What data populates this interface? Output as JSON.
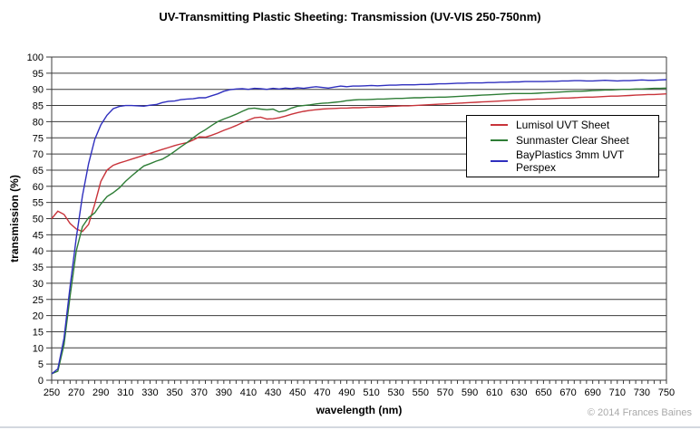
{
  "header": {
    "title": "UV-Transmitting Plastic Sheeting: Transmission (UV-VIS 250-750nm)"
  },
  "footer": {
    "copyright": "© 2014 Frances Baines"
  },
  "chart_data": {
    "type": "line",
    "title": "UV-Transmitting Plastic Sheeting: Transmission (UV-VIS 250-750nm)",
    "xlabel": "wavelength (nm)",
    "ylabel": "transmission (%)",
    "xlim": [
      250,
      750
    ],
    "ylim": [
      0,
      100
    ],
    "x_tick_step": 20,
    "x_minor_tick_step": 5,
    "y_tick_step": 5,
    "grid": "horizontal",
    "legend_position": "inside-upper-right",
    "grid_color": "#3c3c3c",
    "wavelengths_nm": [
      250,
      255,
      260,
      265,
      270,
      275,
      280,
      285,
      290,
      295,
      300,
      305,
      310,
      315,
      320,
      325,
      330,
      335,
      340,
      345,
      350,
      355,
      360,
      365,
      370,
      375,
      380,
      385,
      390,
      395,
      400,
      405,
      410,
      415,
      420,
      425,
      430,
      435,
      440,
      445,
      450,
      455,
      460,
      465,
      470,
      475,
      480,
      485,
      490,
      495,
      500,
      505,
      510,
      515,
      520,
      525,
      530,
      535,
      540,
      545,
      550,
      555,
      560,
      565,
      570,
      575,
      580,
      585,
      590,
      595,
      600,
      605,
      610,
      615,
      620,
      625,
      630,
      635,
      640,
      645,
      650,
      655,
      660,
      665,
      670,
      675,
      680,
      685,
      690,
      695,
      700,
      705,
      710,
      715,
      720,
      725,
      730,
      735,
      740,
      745,
      750
    ],
    "series": [
      {
        "name": "Lumisol UVT Sheet",
        "color": "#c8333a",
        "values": [
          50.0,
          52.3,
          51.3,
          48.5,
          46.8,
          46.0,
          48.2,
          54.5,
          61.5,
          65.0,
          66.5,
          67.2,
          67.8,
          68.4,
          69.0,
          69.6,
          70.2,
          70.8,
          71.4,
          72.0,
          72.6,
          73.1,
          73.5,
          74.3,
          75.3,
          75.2,
          75.8,
          76.5,
          77.3,
          78.0,
          78.8,
          79.7,
          80.5,
          81.2,
          81.4,
          80.8,
          80.9,
          81.2,
          81.7,
          82.3,
          82.8,
          83.2,
          83.5,
          83.7,
          83.9,
          84.0,
          84.1,
          84.2,
          84.2,
          84.3,
          84.3,
          84.4,
          84.5,
          84.5,
          84.6,
          84.7,
          84.8,
          84.9,
          84.9,
          85.0,
          85.1,
          85.2,
          85.3,
          85.4,
          85.5,
          85.6,
          85.7,
          85.8,
          85.9,
          86.0,
          86.1,
          86.2,
          86.3,
          86.4,
          86.5,
          86.6,
          86.7,
          86.8,
          86.9,
          87.0,
          87.0,
          87.1,
          87.2,
          87.3,
          87.3,
          87.4,
          87.5,
          87.6,
          87.6,
          87.7,
          87.8,
          87.9,
          87.9,
          88.0,
          88.1,
          88.2,
          88.3,
          88.4,
          88.4,
          88.5,
          88.6
        ]
      },
      {
        "name": "Sunmaster Clear Sheet",
        "color": "#2e7d36",
        "values": [
          2.0,
          2.8,
          11.0,
          26.0,
          40.0,
          47.5,
          50.3,
          51.8,
          54.5,
          56.8,
          58.0,
          59.5,
          61.5,
          63.2,
          64.8,
          66.3,
          67.0,
          67.8,
          68.4,
          69.5,
          70.8,
          72.2,
          73.5,
          75.0,
          76.4,
          77.5,
          78.8,
          80.0,
          80.8,
          81.5,
          82.3,
          83.2,
          84.0,
          84.2,
          83.9,
          83.7,
          83.9,
          83.0,
          83.4,
          84.2,
          84.8,
          85.0,
          85.2,
          85.5,
          85.7,
          85.8,
          86.0,
          86.2,
          86.5,
          86.7,
          86.8,
          86.8,
          86.9,
          87.0,
          87.0,
          87.1,
          87.2,
          87.2,
          87.3,
          87.4,
          87.4,
          87.5,
          87.5,
          87.6,
          87.6,
          87.7,
          87.8,
          87.9,
          88.0,
          88.1,
          88.2,
          88.3,
          88.4,
          88.5,
          88.6,
          88.7,
          88.7,
          88.7,
          88.7,
          88.8,
          88.9,
          89.0,
          89.1,
          89.2,
          89.3,
          89.4,
          89.4,
          89.5,
          89.6,
          89.7,
          89.8,
          89.8,
          89.9,
          90.0,
          90.0,
          90.1,
          90.1,
          90.2,
          90.3,
          90.3,
          90.4
        ]
      },
      {
        "name": "BayPlastics 3mm UVT Perspex",
        "color": "#2f2fbe",
        "values": [
          2.0,
          3.5,
          13.0,
          29.0,
          44.0,
          57.0,
          67.0,
          74.5,
          79.0,
          82.0,
          84.0,
          84.7,
          85.0,
          85.0,
          84.9,
          84.8,
          85.1,
          85.3,
          85.9,
          86.3,
          86.4,
          86.8,
          87.0,
          87.1,
          87.4,
          87.4,
          88.0,
          88.6,
          89.4,
          89.9,
          90.1,
          90.2,
          90.0,
          90.3,
          90.2,
          90.0,
          90.3,
          90.1,
          90.4,
          90.2,
          90.5,
          90.3,
          90.6,
          90.8,
          90.6,
          90.4,
          90.7,
          91.0,
          90.8,
          91.0,
          91.0,
          91.1,
          91.2,
          91.1,
          91.2,
          91.3,
          91.3,
          91.4,
          91.4,
          91.4,
          91.5,
          91.5,
          91.6,
          91.7,
          91.7,
          91.8,
          91.9,
          91.9,
          92.0,
          92.0,
          92.0,
          92.1,
          92.1,
          92.2,
          92.2,
          92.3,
          92.3,
          92.4,
          92.4,
          92.4,
          92.4,
          92.5,
          92.5,
          92.6,
          92.6,
          92.7,
          92.7,
          92.6,
          92.6,
          92.7,
          92.8,
          92.7,
          92.6,
          92.7,
          92.7,
          92.8,
          92.9,
          92.8,
          92.8,
          92.9,
          93.0
        ]
      }
    ]
  }
}
